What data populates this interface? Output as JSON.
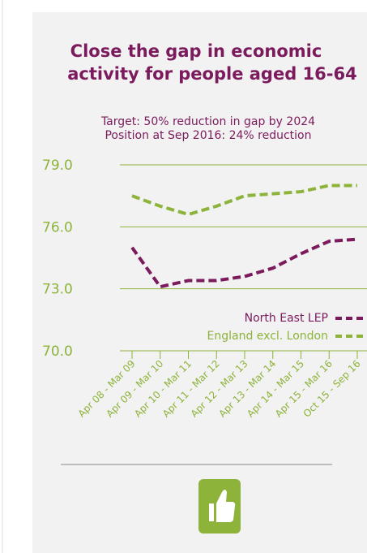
{
  "chart_data": {
    "type": "line",
    "title": [
      "Close the gap in economic",
      "activity for people aged 16-64"
    ],
    "subtitle": [
      "Target: 50% reduction in gap by 2024",
      "Position at Sep 2016: 24% reduction"
    ],
    "categories": [
      "Apr 08 - Mar 09",
      "Apr 09 - Mar 10",
      "Apr 10 - Mar 11",
      "Apr 11 - Mar 12",
      "Apr 12 - Mar 13",
      "Apr 13 - Mar 14",
      "Apr 14 - Mar 15",
      "Apr 15 - Mar 16",
      "Oct 15 - Sep 16"
    ],
    "series": [
      {
        "name": "North East LEP",
        "color": "#7b1a5c",
        "values": [
          75.0,
          73.1,
          73.4,
          73.4,
          73.6,
          74.0,
          74.7,
          75.3,
          75.4
        ]
      },
      {
        "name": "England excl. London",
        "color": "#8db33a",
        "values": [
          77.5,
          77.0,
          76.6,
          77.0,
          77.5,
          77.6,
          77.7,
          78.0,
          78.0
        ]
      }
    ],
    "ylim": [
      70,
      79
    ],
    "yticks": [
      {
        "value": 79,
        "label": "79.0"
      },
      {
        "value": 76,
        "label": "76.0"
      },
      {
        "value": 73,
        "label": "73.0"
      },
      {
        "value": 70,
        "label": "70.0"
      }
    ],
    "grid": true,
    "legend": "bottom-right"
  }
}
